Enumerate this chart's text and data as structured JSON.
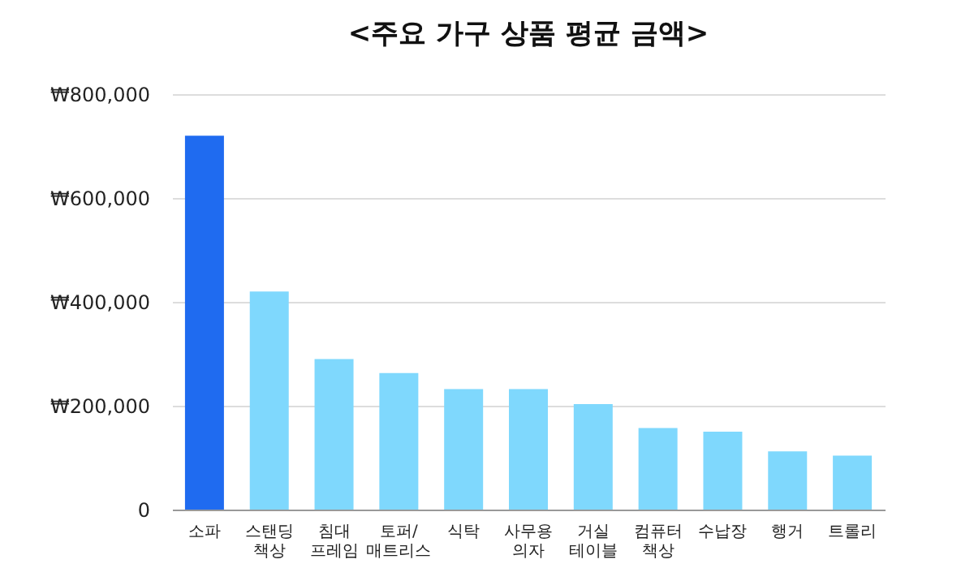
{
  "chart_data": {
    "type": "bar",
    "title": "<주요 가구 상품 평균 금액>",
    "categories": [
      "소파",
      "스탠딩\n책상",
      "침대\n프레임",
      "토퍼/\n매트리스",
      "식탁",
      "사무용\n의자",
      "거실\n테이블",
      "컴퓨터\n책상",
      "수납장",
      "행거",
      "트롤리"
    ],
    "values": [
      720000,
      420000,
      290000,
      263000,
      232000,
      232000,
      203000,
      157000,
      150000,
      112000,
      104000
    ],
    "colors": [
      "#1f6bf0",
      "#7fd8fd",
      "#7fd8fd",
      "#7fd8fd",
      "#7fd8fd",
      "#7fd8fd",
      "#7fd8fd",
      "#7fd8fd",
      "#7fd8fd",
      "#7fd8fd",
      "#7fd8fd"
    ],
    "ylim": [
      0,
      800000
    ],
    "yticks": [
      0,
      {
        "value": 200000,
        "label": "₩200,000"
      },
      {
        "value": 400000,
        "label": "₩400,000"
      },
      {
        "value": 600000,
        "label": "₩600,000"
      },
      {
        "value": 800000,
        "label": "₩800,000"
      }
    ],
    "grid": "y"
  }
}
